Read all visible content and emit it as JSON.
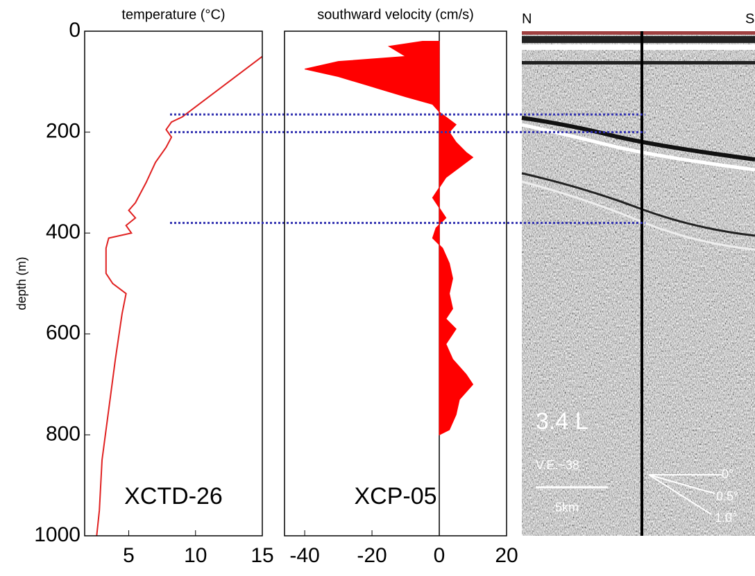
{
  "chart_data": [
    {
      "type": "line",
      "title": "temperature (°C)",
      "y_label": "depth (m)",
      "annotation": "XCTD-26",
      "color": "#e02020",
      "depth": [
        50,
        100,
        150,
        170,
        180,
        195,
        210,
        230,
        260,
        300,
        340,
        355,
        370,
        385,
        400,
        410,
        430,
        480,
        500,
        520,
        560,
        650,
        750,
        850,
        950,
        1000
      ],
      "values": [
        15,
        12.5,
        10,
        9,
        8.2,
        7.8,
        8.2,
        7.8,
        7,
        6.3,
        5.5,
        5,
        5.5,
        4.8,
        5.2,
        3.5,
        3.3,
        3.3,
        3.8,
        4.8,
        4.5,
        4,
        3.5,
        3,
        2.8,
        2.6
      ],
      "xlim": [
        1.7,
        15
      ],
      "xticks": [
        5,
        10,
        15
      ],
      "ylim": [
        0,
        1000
      ],
      "yticks": [
        0,
        200,
        400,
        600,
        800,
        1000
      ],
      "y_inverted": true
    },
    {
      "type": "area",
      "title": "southward velocity (cm/s)",
      "annotation": "XCP-05",
      "color": "#ff0000",
      "depth": [
        20,
        30,
        50,
        60,
        75,
        90,
        110,
        130,
        145,
        160,
        170,
        185,
        200,
        220,
        240,
        250,
        270,
        290,
        310,
        330,
        350,
        370,
        390,
        410,
        430,
        460,
        490,
        520,
        550,
        570,
        590,
        620,
        650,
        680,
        700,
        730,
        760,
        790,
        800
      ],
      "values": [
        -5,
        -15,
        -10,
        -30,
        -40,
        -30,
        -20,
        -10,
        -2,
        0,
        2,
        5,
        3,
        5,
        8,
        10,
        6,
        2,
        0,
        -2,
        0,
        2,
        -1,
        -2,
        1,
        3,
        4,
        3,
        4,
        2,
        5,
        2,
        4,
        8,
        10,
        6,
        5,
        3,
        0
      ],
      "xlim": [
        -46,
        20
      ],
      "xticks": [
        -40,
        -20,
        0,
        20
      ],
      "ylim": [
        0,
        1000
      ],
      "y_inverted": true,
      "reference_depths": [
        165,
        200,
        380
      ],
      "reference_color": "#3030b0"
    }
  ],
  "seismic_panel": {
    "north": "N",
    "south": "S",
    "label": "3.4 L",
    "exaggeration": "V.E.~38",
    "scale": "5km",
    "slopes": [
      "0°",
      "0.5°",
      "1.0°"
    ]
  }
}
